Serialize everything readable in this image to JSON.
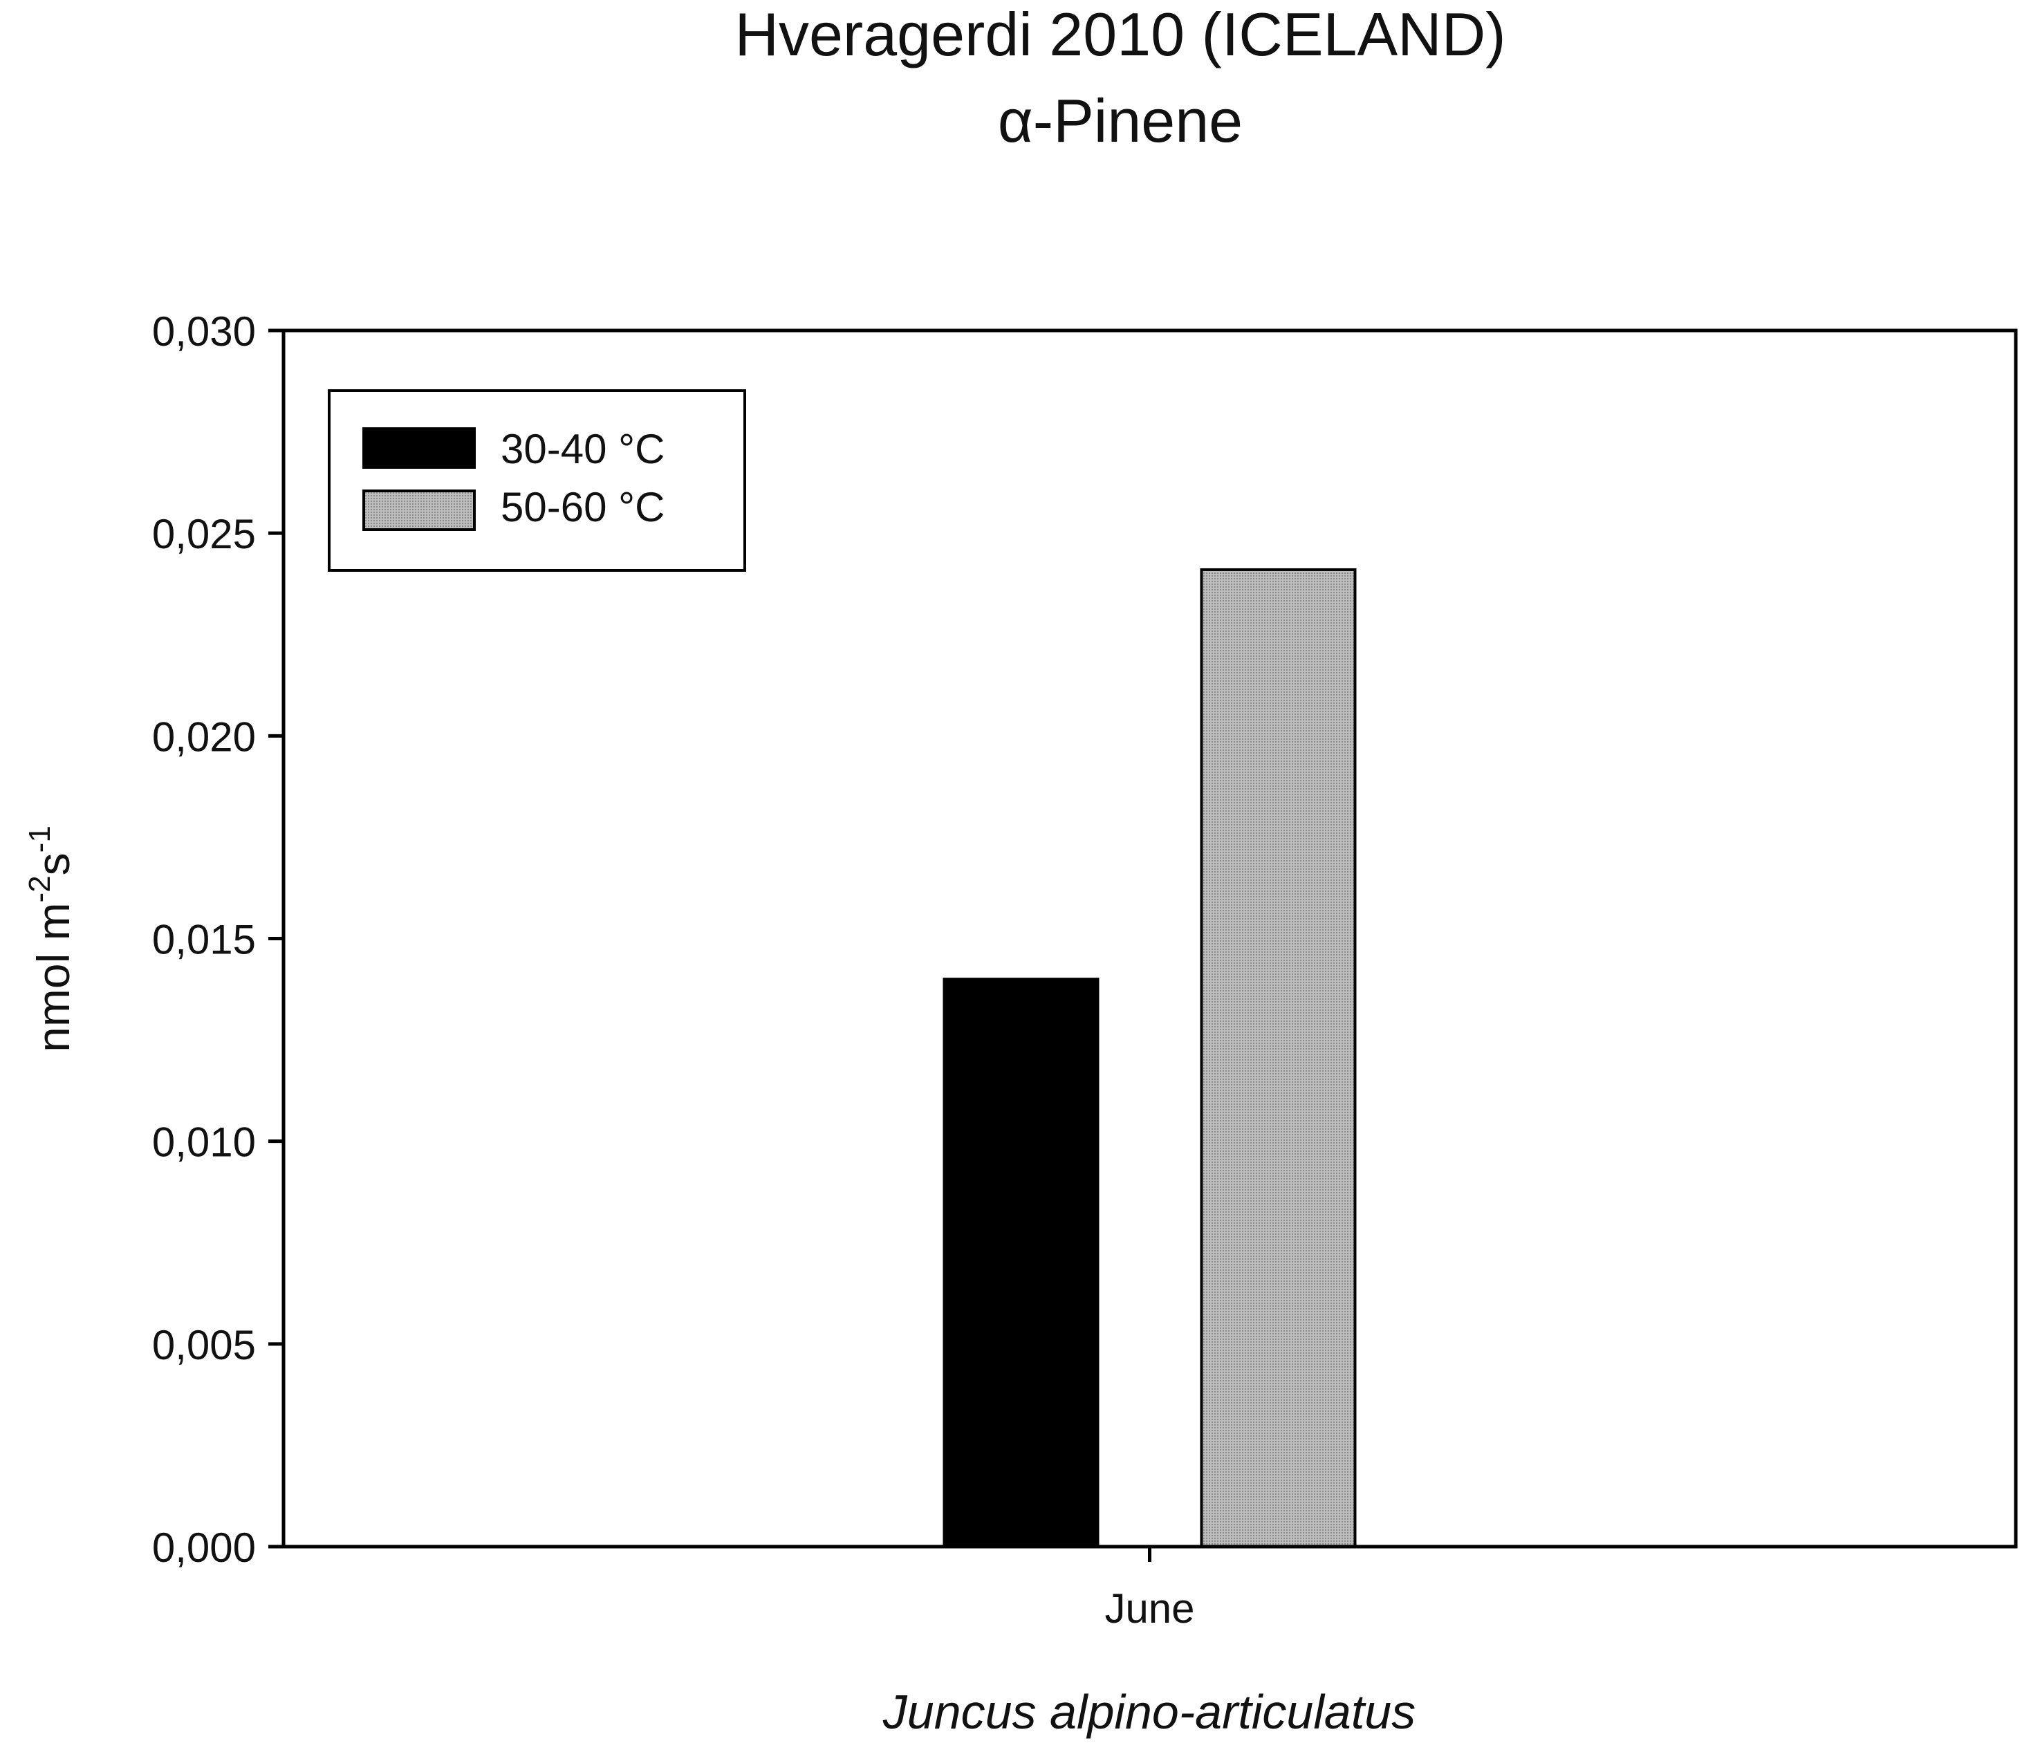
{
  "chart_data": {
    "type": "bar",
    "title": "Hveragerdi 2010 (ICELAND)",
    "subtitle": "α-Pinene",
    "categories": [
      "June"
    ],
    "series": [
      {
        "name": "30-40 °C",
        "values": [
          0.014
        ],
        "color": "#000000"
      },
      {
        "name": "50-60 °C",
        "values": [
          0.0241
        ],
        "color": "#a8a8a8"
      }
    ],
    "xlabel": "Juncus alpino-articulatus",
    "ylabel_parts": {
      "base": "nmol m",
      "exp1": "-2",
      "mid": "s",
      "exp2": "-1"
    },
    "ylim": [
      0,
      0.03
    ],
    "yticks": [
      "0,000",
      "0,005",
      "0,010",
      "0,015",
      "0,020",
      "0,025",
      "0,030"
    ],
    "grid": false,
    "legend_position": "top-left"
  }
}
